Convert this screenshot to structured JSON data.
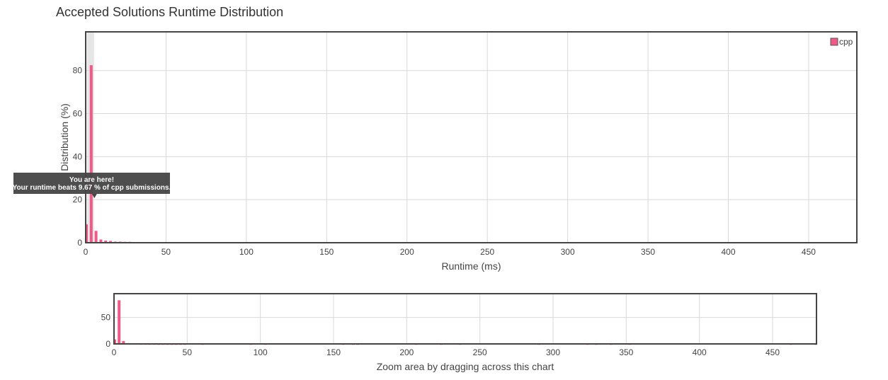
{
  "title": "Accepted Solutions Runtime Distribution",
  "colors": {
    "bar": "#ef5a87",
    "frame": "#444444",
    "grid": "#d9d9d9",
    "highlight": "#e6e6e6",
    "tooltip": "#444444"
  },
  "tooltip": {
    "line1": "You are here!",
    "line2": "Your runtime beats 9.67 % of cpp submissions."
  },
  "chart_data": [
    {
      "type": "bar",
      "title": "Accepted Solutions Runtime Distribution",
      "xlabel": "Runtime (ms)",
      "ylabel": "Distribution (%)",
      "legend": {
        "entries": [
          "cpp"
        ],
        "placement": "top-right"
      },
      "xlim": [
        0,
        480
      ],
      "ylim": [
        0,
        98
      ],
      "x_ticks": [
        0,
        50,
        100,
        150,
        200,
        250,
        300,
        350,
        400,
        450
      ],
      "y_ticks": [
        0,
        20,
        40,
        60,
        80
      ],
      "grid": true,
      "highlight_x": 3,
      "series": [
        {
          "name": "cpp",
          "x": [
            0,
            3,
            6,
            9,
            12,
            15,
            18,
            21,
            24,
            27,
            30,
            33,
            36,
            39,
            42,
            45,
            48,
            60,
            93,
            103,
            156,
            163,
            166,
            206,
            223,
            236,
            290,
            323,
            329,
            339,
            352,
            462,
            479
          ],
          "values": [
            8.5,
            82.5,
            5.5,
            1.5,
            1.0,
            0.8,
            0.5,
            0.5,
            0.4,
            0.4,
            0.3,
            0.3,
            0.3,
            0.3,
            0.3,
            0.3,
            0.3,
            0.3,
            0.3,
            0.3,
            0.3,
            0.3,
            0.3,
            0.3,
            0.3,
            0.3,
            0.3,
            0.3,
            0.3,
            0.3,
            0.3,
            0.3,
            0.3
          ]
        }
      ]
    },
    {
      "type": "bar",
      "xlabel": "Zoom area by dragging across this chart",
      "xlim": [
        0,
        480
      ],
      "ylim": [
        0,
        95
      ],
      "x_ticks": [
        0,
        50,
        100,
        150,
        200,
        250,
        300,
        350,
        400,
        450
      ],
      "y_ticks": [
        0,
        50
      ],
      "grid": true,
      "series_ref": "cpp"
    }
  ]
}
